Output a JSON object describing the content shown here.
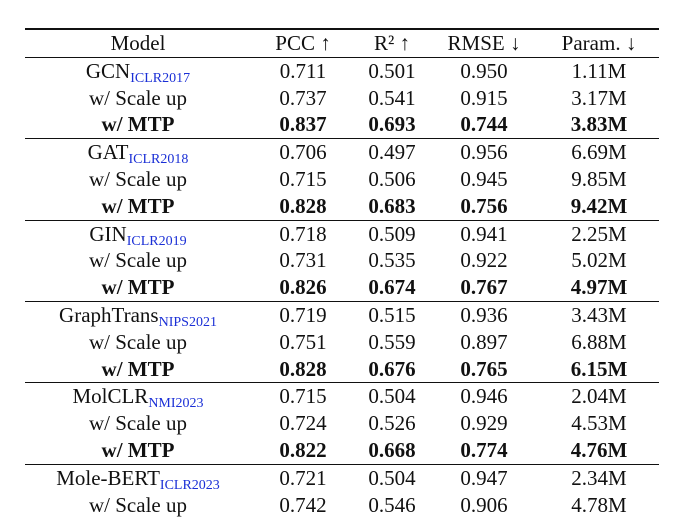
{
  "table": {
    "headers": [
      "Model",
      "PCC ↑",
      "R² ↑",
      "RMSE ↓",
      "Param. ↓"
    ],
    "groups": [
      {
        "rows": [
          {
            "model": "GCN",
            "venue": "ICLR2017",
            "pcc": "0.711",
            "r2": "0.501",
            "rmse": "0.950",
            "param": "1.11M"
          },
          {
            "model": "w/ Scale up",
            "pcc": "0.737",
            "r2": "0.541",
            "rmse": "0.915",
            "param": "3.17M"
          },
          {
            "model": "w/ MTP",
            "pcc": "0.837",
            "r2": "0.693",
            "rmse": "0.744",
            "param": "3.83M"
          }
        ]
      },
      {
        "rows": [
          {
            "model": "GAT",
            "venue": "ICLR2018",
            "pcc": "0.706",
            "r2": "0.497",
            "rmse": "0.956",
            "param": "6.69M"
          },
          {
            "model": "w/ Scale up",
            "pcc": "0.715",
            "r2": "0.506",
            "rmse": "0.945",
            "param": "9.85M"
          },
          {
            "model": "w/ MTP",
            "pcc": "0.828",
            "r2": "0.683",
            "rmse": "0.756",
            "param": "9.42M"
          }
        ]
      },
      {
        "rows": [
          {
            "model": "GIN",
            "venue": "ICLR2019",
            "pcc": "0.718",
            "r2": "0.509",
            "rmse": "0.941",
            "param": "2.25M"
          },
          {
            "model": "w/ Scale up",
            "pcc": "0.731",
            "r2": "0.535",
            "rmse": "0.922",
            "param": "5.02M"
          },
          {
            "model": "w/ MTP",
            "pcc": "0.826",
            "r2": "0.674",
            "rmse": "0.767",
            "param": "4.97M"
          }
        ]
      },
      {
        "rows": [
          {
            "model": "GraphTrans",
            "venue": "NIPS2021",
            "pcc": "0.719",
            "r2": "0.515",
            "rmse": "0.936",
            "param": "3.43M"
          },
          {
            "model": "w/ Scale up",
            "pcc": "0.751",
            "r2": "0.559",
            "rmse": "0.897",
            "param": "6.88M"
          },
          {
            "model": "w/ MTP",
            "pcc": "0.828",
            "r2": "0.676",
            "rmse": "0.765",
            "param": "6.15M"
          }
        ]
      },
      {
        "rows": [
          {
            "model": "MolCLR",
            "venue": "NMI2023",
            "pcc": "0.715",
            "r2": "0.504",
            "rmse": "0.946",
            "param": "2.04M"
          },
          {
            "model": "w/ Scale up",
            "pcc": "0.724",
            "r2": "0.526",
            "rmse": "0.929",
            "param": "4.53M"
          },
          {
            "model": "w/ MTP",
            "pcc": "0.822",
            "r2": "0.668",
            "rmse": "0.774",
            "param": "4.76M"
          }
        ]
      },
      {
        "rows": [
          {
            "model": "Mole-BERT",
            "venue": "ICLR2023",
            "pcc": "0.721",
            "r2": "0.504",
            "rmse": "0.947",
            "param": "2.34M"
          },
          {
            "model": "w/ Scale up",
            "pcc": "0.742",
            "r2": "0.546",
            "rmse": "0.906",
            "param": "4.78M"
          }
        ]
      }
    ]
  }
}
